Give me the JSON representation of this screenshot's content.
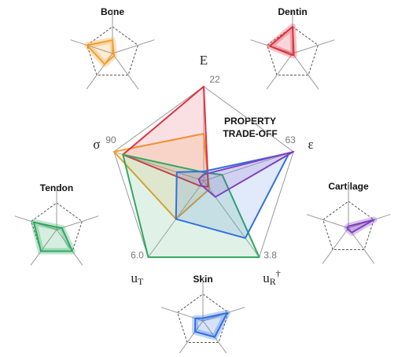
{
  "chart_data": {
    "type": "radar",
    "annotation": [
      "PROPERTY",
      "TRADE-OFF"
    ],
    "axes": [
      {
        "label": "E",
        "max": 22
      },
      {
        "label": "ε",
        "max": 63
      },
      {
        "label": "u",
        "sub": "R",
        "sup": "†",
        "max": 3.8
      },
      {
        "label": "u",
        "sub": "T",
        "max": {
          "value": 6,
          "label": "6.0"
        }
      },
      {
        "label": "σ",
        "max": 90
      }
    ],
    "series": [
      {
        "name": "Bone",
        "color": "#f0a030",
        "values": [
          11,
          3,
          0.4,
          3,
          90
        ]
      },
      {
        "name": "Dentin",
        "color": "#e03040",
        "values": [
          22,
          3,
          0.3,
          0.4,
          81
        ]
      },
      {
        "name": "Tendon",
        "color": "#30a860",
        "values": [
          2,
          13,
          3.8,
          6,
          81
        ]
      },
      {
        "name": "Skin",
        "color": "#3070e0",
        "values": [
          2.2,
          60,
          2.85,
          3,
          27
        ]
      },
      {
        "name": "Cartilage",
        "color": "#8040c0",
        "values": [
          1.5,
          63,
          0.8,
          0.3,
          5
        ]
      }
    ]
  }
}
